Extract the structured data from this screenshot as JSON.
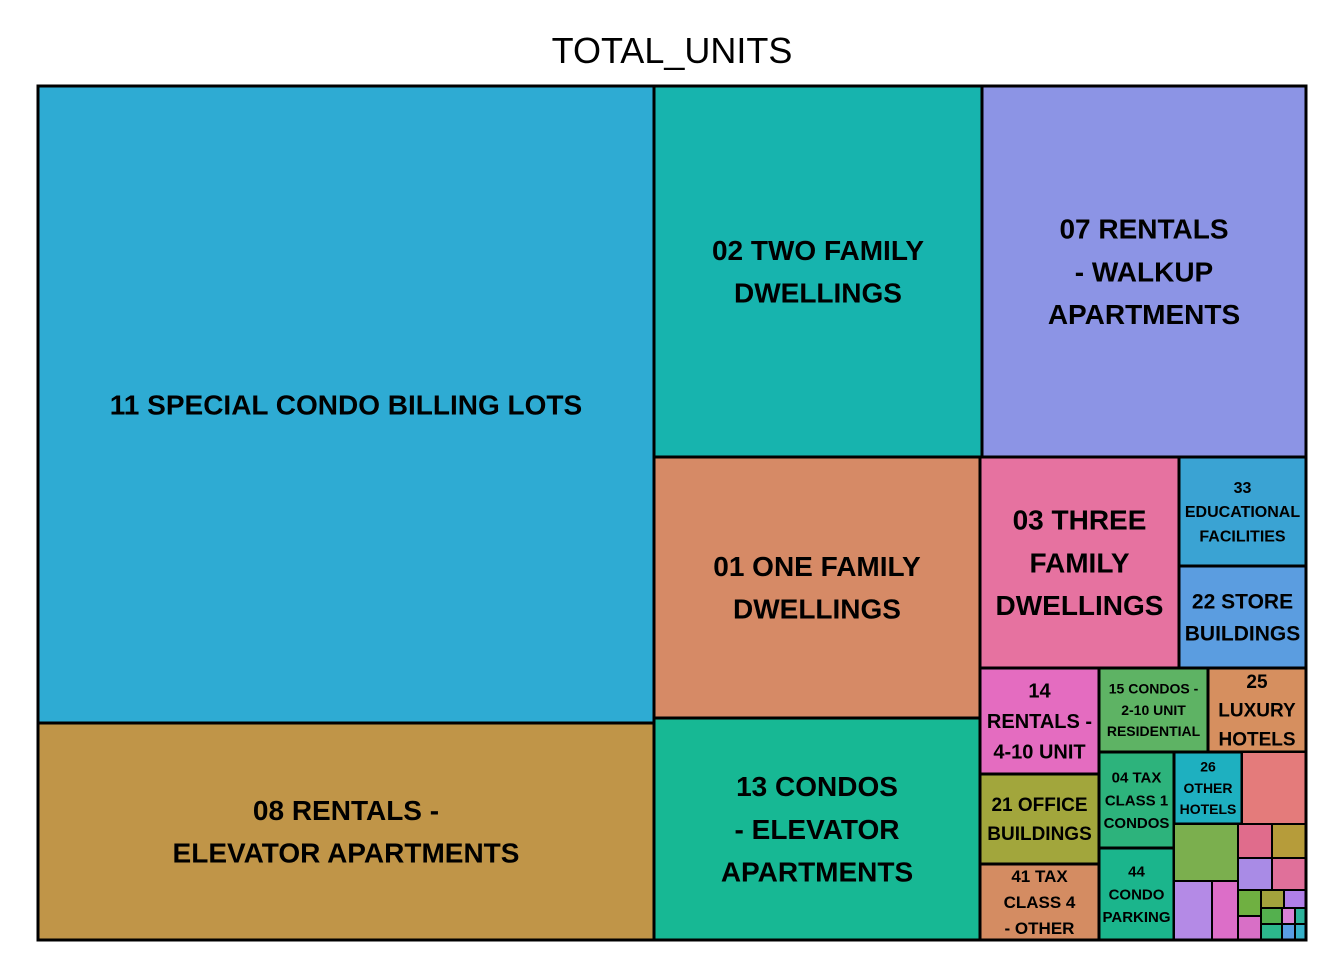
{
  "chart_data": {
    "type": "treemap",
    "title": "TOTAL_UNITS",
    "tiles": [
      {
        "label": "11 SPECIAL CONDO BILLING LOTS",
        "color": "#2EABD3"
      },
      {
        "label": "08 RENTALS - ELEVATOR APARTMENTS",
        "color": "#C09548"
      },
      {
        "label": "02 TWO FAMILY DWELLINGS",
        "color": "#17B4AE"
      },
      {
        "label": "07 RENTALS - WALKUP APARTMENTS",
        "color": "#8C94E5"
      },
      {
        "label": "01 ONE FAMILY DWELLINGS",
        "color": "#D68A66"
      },
      {
        "label": "13 CONDOS - ELEVATOR APARTMENTS",
        "color": "#17B894"
      },
      {
        "label": "03 THREE FAMILY DWELLINGS",
        "color": "#E672A0"
      },
      {
        "label": "33 EDUCATIONAL FACILITIES",
        "color": "#3AA3D3"
      },
      {
        "label": "22 STORE BUILDINGS",
        "color": "#5B9DE0"
      },
      {
        "label": "14 RENTALS - 4-10 UNIT",
        "color": "#E46CC0"
      },
      {
        "label": "15 CONDOS - 2-10 UNIT RESIDENTIAL",
        "color": "#5EB364"
      },
      {
        "label": "25 LUXURY HOTELS",
        "color": "#D68F5F"
      },
      {
        "label": "21 OFFICE BUILDINGS",
        "color": "#A2A63C"
      },
      {
        "label": "04 TAX CLASS 1 CONDOS",
        "color": "#2DB37C"
      },
      {
        "label": "26 OTHER HOTELS",
        "color": "#1EB0C0"
      },
      {
        "label": "41 TAX CLASS 4 - OTHER",
        "color": "#D48C62"
      },
      {
        "label": "44 CONDO PARKING",
        "color": "#1BB58C"
      },
      {
        "label": "",
        "color": "#E47B7B"
      },
      {
        "label": "",
        "color": "#7BAF4E"
      },
      {
        "label": "",
        "color": "#E06C8C"
      },
      {
        "label": "",
        "color": "#B69C3A"
      },
      {
        "label": "",
        "color": "#A98BE6"
      },
      {
        "label": "",
        "color": "#E0709A"
      },
      {
        "label": "",
        "color": "#B48AE6"
      },
      {
        "label": "",
        "color": "#DC6EC8"
      },
      {
        "label": "",
        "color": "#6FB041"
      },
      {
        "label": "",
        "color": "#D86FC6"
      },
      {
        "label": "",
        "color": "#A3A23C"
      },
      {
        "label": "",
        "color": "#B07FE8"
      },
      {
        "label": "",
        "color": "#54B04E"
      },
      {
        "label": "",
        "color": "#2CB88C"
      },
      {
        "label": "",
        "color": "#D982D6"
      },
      {
        "label": "",
        "color": "#2CB39A"
      },
      {
        "label": "",
        "color": "#5A9EE6"
      },
      {
        "label": "",
        "color": "#36B1C9"
      }
    ]
  }
}
